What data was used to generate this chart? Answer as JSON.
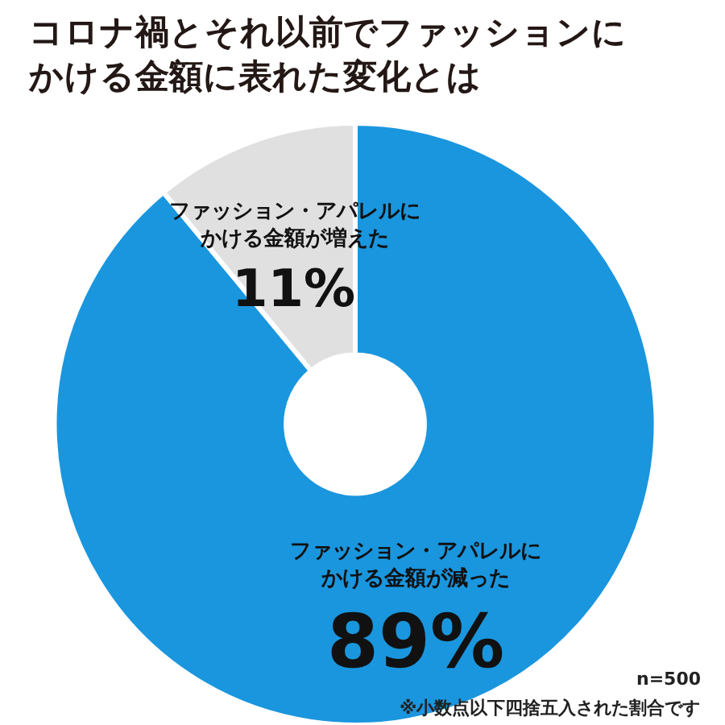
{
  "chart_data": {
    "type": "donut",
    "title": "コロナ禍とそれ以前でファッションにかける金額に表れた変化とは",
    "categories": [
      "ファッション・アパレルにかける金額が減った",
      "ファッション・アパレルにかける金額が増えた"
    ],
    "values": [
      89,
      11
    ],
    "value_labels": [
      "89%",
      "11%"
    ],
    "colors": [
      "#1a96de",
      "#e0e0e0"
    ],
    "legend": false,
    "annotations": [
      "n=500",
      "※小数点以下四捨五入された割合です"
    ]
  }
}
